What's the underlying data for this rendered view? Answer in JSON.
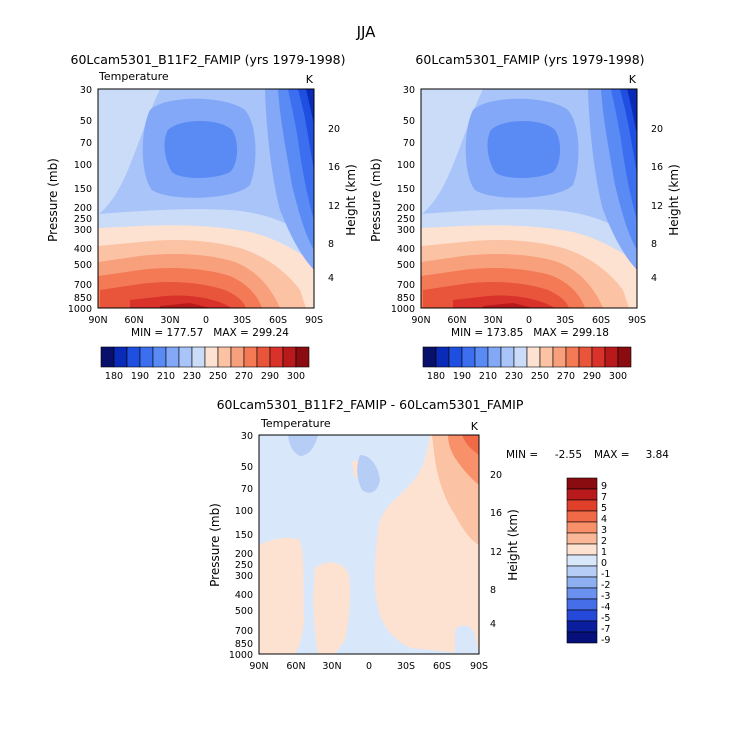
{
  "season_title": "JJA",
  "chart_data": [
    {
      "type": "heatmap",
      "title": "60Lcam5301_B11F2_FAMIP (yrs 1979-1998)",
      "subtitle_left": "Temperature",
      "subtitle_right": "K",
      "xlabel": "",
      "ylabel": "Pressure (mb)",
      "ylabel_right": "Height (km)",
      "x_ticks": [
        "90N",
        "60N",
        "30N",
        "0",
        "30S",
        "60S",
        "90S"
      ],
      "y_ticks": [
        "30",
        "50",
        "70",
        "100",
        "150",
        "200",
        "250",
        "300",
        "400",
        "500",
        "700",
        "850",
        "1000"
      ],
      "height_ticks": [
        "20",
        "16",
        "12",
        "8",
        "4"
      ],
      "min_max": "MIN = 177.57   MAX = 299.24",
      "colorbar_labels": [
        "180",
        "190",
        "210",
        "230",
        "250",
        "270",
        "290",
        "300"
      ]
    },
    {
      "type": "heatmap",
      "title": "60Lcam5301_FAMIP (yrs 1979-1998)",
      "subtitle_left": "",
      "subtitle_right": "K",
      "xlabel": "",
      "ylabel": "Pressure (mb)",
      "ylabel_right": "Height (km)",
      "x_ticks": [
        "90N",
        "60N",
        "30N",
        "0",
        "30S",
        "60S",
        "90S"
      ],
      "y_ticks": [
        "30",
        "50",
        "70",
        "100",
        "150",
        "200",
        "250",
        "300",
        "400",
        "500",
        "700",
        "850",
        "1000"
      ],
      "height_ticks": [
        "20",
        "16",
        "12",
        "8",
        "4"
      ],
      "min_max": "MIN = 173.85   MAX = 299.18",
      "colorbar_labels": [
        "180",
        "190",
        "210",
        "230",
        "250",
        "270",
        "290",
        "300"
      ]
    },
    {
      "type": "heatmap",
      "title": "60Lcam5301_B11F2_FAMIP - 60Lcam5301_FAMIP",
      "subtitle_left": "Temperature",
      "subtitle_right": "K",
      "xlabel": "",
      "ylabel": "Pressure (mb)",
      "ylabel_right": "Height (km)",
      "x_ticks": [
        "90N",
        "60N",
        "30N",
        "0",
        "30S",
        "60S",
        "90S"
      ],
      "y_ticks": [
        "30",
        "50",
        "70",
        "100",
        "150",
        "200",
        "250",
        "300",
        "400",
        "500",
        "700",
        "850",
        "1000"
      ],
      "height_ticks": [
        "20",
        "16",
        "12",
        "8",
        "4"
      ],
      "min_label": "MIN =",
      "min_value": "-2.55",
      "max_label": "MAX =",
      "max_value": "3.84",
      "colorbar_labels": [
        "9",
        "7",
        "5",
        "4",
        "3",
        "2",
        "1",
        "0",
        "-1",
        "-2",
        "-3",
        "-4",
        "-5",
        "-7",
        "-9"
      ]
    }
  ],
  "colors": {
    "abs_scale": [
      "#08106b",
      "#0a2bb8",
      "#1f4fe0",
      "#3c6ff0",
      "#5a8bf5",
      "#82a8f7",
      "#a8c4f8",
      "#cbdcf8",
      "#fde2d2",
      "#fbc2a4",
      "#f8a07c",
      "#f47a56",
      "#e8553a",
      "#d8322a",
      "#b81a1c",
      "#8a0c10"
    ],
    "diff_scale": [
      "#8a0c10",
      "#b81a1c",
      "#e0402a",
      "#f06a48",
      "#f8916a",
      "#fbb898",
      "#fde2d2",
      "#d9e7fb",
      "#b6cdf6",
      "#8eb0f3",
      "#6a90f0",
      "#466ee8",
      "#2549d8",
      "#0b1f9e",
      "#06107a"
    ]
  }
}
